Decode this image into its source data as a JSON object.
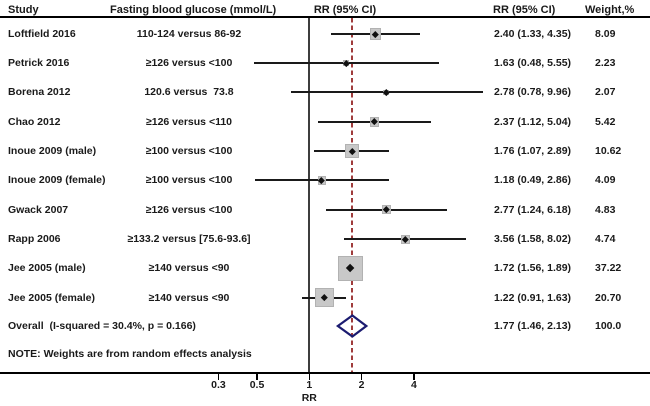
{
  "header": {
    "study": "Study",
    "exposure": "Fasting blood glucose (mmol/L)",
    "plot_rr": "RR (95% CI)",
    "rr": "RR (95% CI)",
    "weight": "Weight,%"
  },
  "colors": {
    "dashed_overall_line": "#a03c3c",
    "diamond_outline": "#1b1b70",
    "square_fill": "#c8c8c8",
    "square_border": "#b2b2b2",
    "ci_line": "#1a1a1a",
    "ref_line": "#3d3d3d",
    "text": "#1a1a1a"
  },
  "chart_data": {
    "type": "forest",
    "xlabel": "RR",
    "x_scale": "log",
    "x_ticks": [
      "0.3",
      "0.5",
      "1",
      "2",
      "4"
    ],
    "x_tick_values": [
      0.3,
      0.5,
      1,
      2,
      4
    ],
    "reference_line": 1,
    "overall_estimate_line": 1.77,
    "note": "NOTE: Weights are from random effects analysis",
    "studies": [
      {
        "study": "Loftfield 2016",
        "exposure": "110-124 versus 86-92",
        "rr": 2.4,
        "ci_low": 1.33,
        "ci_high": 4.35,
        "rr_text": "2.40 (1.33, 4.35)",
        "weight": 8.09,
        "weight_text": "8.09"
      },
      {
        "study": "Petrick 2016",
        "exposure": "≥126 versus <100",
        "rr": 1.63,
        "ci_low": 0.48,
        "ci_high": 5.55,
        "rr_text": "1.63 (0.48, 5.55)",
        "weight": 2.23,
        "weight_text": "2.23"
      },
      {
        "study": "Borena 2012",
        "exposure": "120.6 versus  73.8",
        "rr": 2.78,
        "ci_low": 0.78,
        "ci_high": 9.96,
        "rr_text": "2.78 (0.78, 9.96)",
        "weight": 2.07,
        "weight_text": "2.07"
      },
      {
        "study": "Chao 2012",
        "exposure": "≥126 versus <110",
        "rr": 2.37,
        "ci_low": 1.12,
        "ci_high": 5.04,
        "rr_text": "2.37 (1.12, 5.04)",
        "weight": 5.42,
        "weight_text": "5.42"
      },
      {
        "study": "Inoue 2009 (male)",
        "exposure": "≥100 versus <100",
        "rr": 1.76,
        "ci_low": 1.07,
        "ci_high": 2.89,
        "rr_text": "1.76 (1.07, 2.89)",
        "weight": 10.62,
        "weight_text": "10.62"
      },
      {
        "study": "Inoue 2009 (female)",
        "exposure": "≥100 versus <100",
        "rr": 1.18,
        "ci_low": 0.49,
        "ci_high": 2.86,
        "rr_text": "1.18 (0.49, 2.86)",
        "weight": 4.09,
        "weight_text": "4.09"
      },
      {
        "study": "Gwack 2007",
        "exposure": "≥126 versus <100",
        "rr": 2.77,
        "ci_low": 1.24,
        "ci_high": 6.18,
        "rr_text": "2.77 (1.24, 6.18)",
        "weight": 4.83,
        "weight_text": "4.83"
      },
      {
        "study": "Rapp 2006",
        "exposure": "≥133.2 versus [75.6-93.6]",
        "rr": 3.56,
        "ci_low": 1.58,
        "ci_high": 8.02,
        "rr_text": "3.56 (1.58, 8.02)",
        "weight": 4.74,
        "weight_text": "4.74"
      },
      {
        "study": "Jee 2005 (male)",
        "exposure": "≥140 versus <90",
        "rr": 1.72,
        "ci_low": 1.56,
        "ci_high": 1.89,
        "rr_text": "1.72 (1.56, 1.89)",
        "weight": 37.22,
        "weight_text": "37.22"
      },
      {
        "study": "Jee 2005 (female)",
        "exposure": "≥140 versus <90",
        "rr": 1.22,
        "ci_low": 0.91,
        "ci_high": 1.63,
        "rr_text": "1.22 (0.91, 1.63)",
        "weight": 20.7,
        "weight_text": "20.70"
      }
    ],
    "overall": {
      "label": "Overall  (I-squared = 30.4%, p = 0.166)",
      "rr": 1.77,
      "ci_low": 1.46,
      "ci_high": 2.13,
      "rr_text": "1.77 (1.46, 2.13)",
      "weight_text": "100.0"
    }
  }
}
